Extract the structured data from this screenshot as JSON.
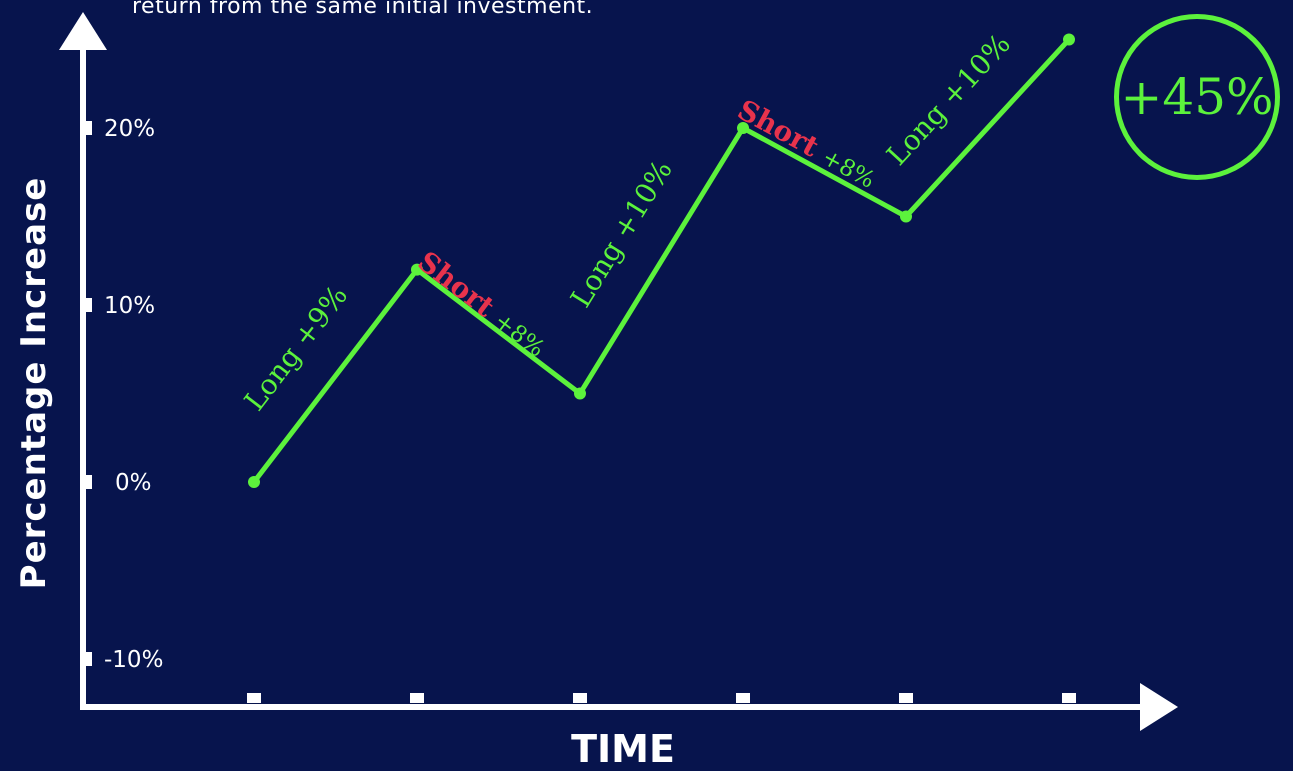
{
  "caption": "return from the same initial investment.",
  "badge": {
    "text": "+45%"
  },
  "colors": {
    "background": "#07144d",
    "line": "#5cf23c",
    "long": "#5cf23c",
    "short": "#e8334c",
    "axis": "#ffffff"
  },
  "chart_data": {
    "type": "line",
    "title": "",
    "xlabel": "TIME",
    "ylabel": "Percentage Increase",
    "x": [
      1,
      2,
      3,
      4,
      5,
      6
    ],
    "ylim": [
      -11,
      26
    ],
    "yticks": [
      {
        "value": 20,
        "label": "20%"
      },
      {
        "value": 10,
        "label": "10%"
      },
      {
        "value": 0,
        "label": "0%"
      },
      {
        "value": -10,
        "label": "-10%"
      }
    ],
    "series": [
      {
        "values": [
          0,
          12,
          5,
          20,
          15,
          25
        ]
      }
    ],
    "annotations": [
      {
        "from": 1,
        "to": 2,
        "side": "Long",
        "change": "+9%",
        "kind": "long"
      },
      {
        "from": 2,
        "to": 3,
        "side": "Short",
        "change": "+8%",
        "kind": "short"
      },
      {
        "from": 3,
        "to": 4,
        "side": "Long",
        "change": "+10%",
        "kind": "long"
      },
      {
        "from": 4,
        "to": 5,
        "side": "Short",
        "change": "+8%",
        "kind": "short"
      },
      {
        "from": 5,
        "to": 6,
        "side": "Long",
        "change": "+10%",
        "kind": "long"
      }
    ]
  }
}
